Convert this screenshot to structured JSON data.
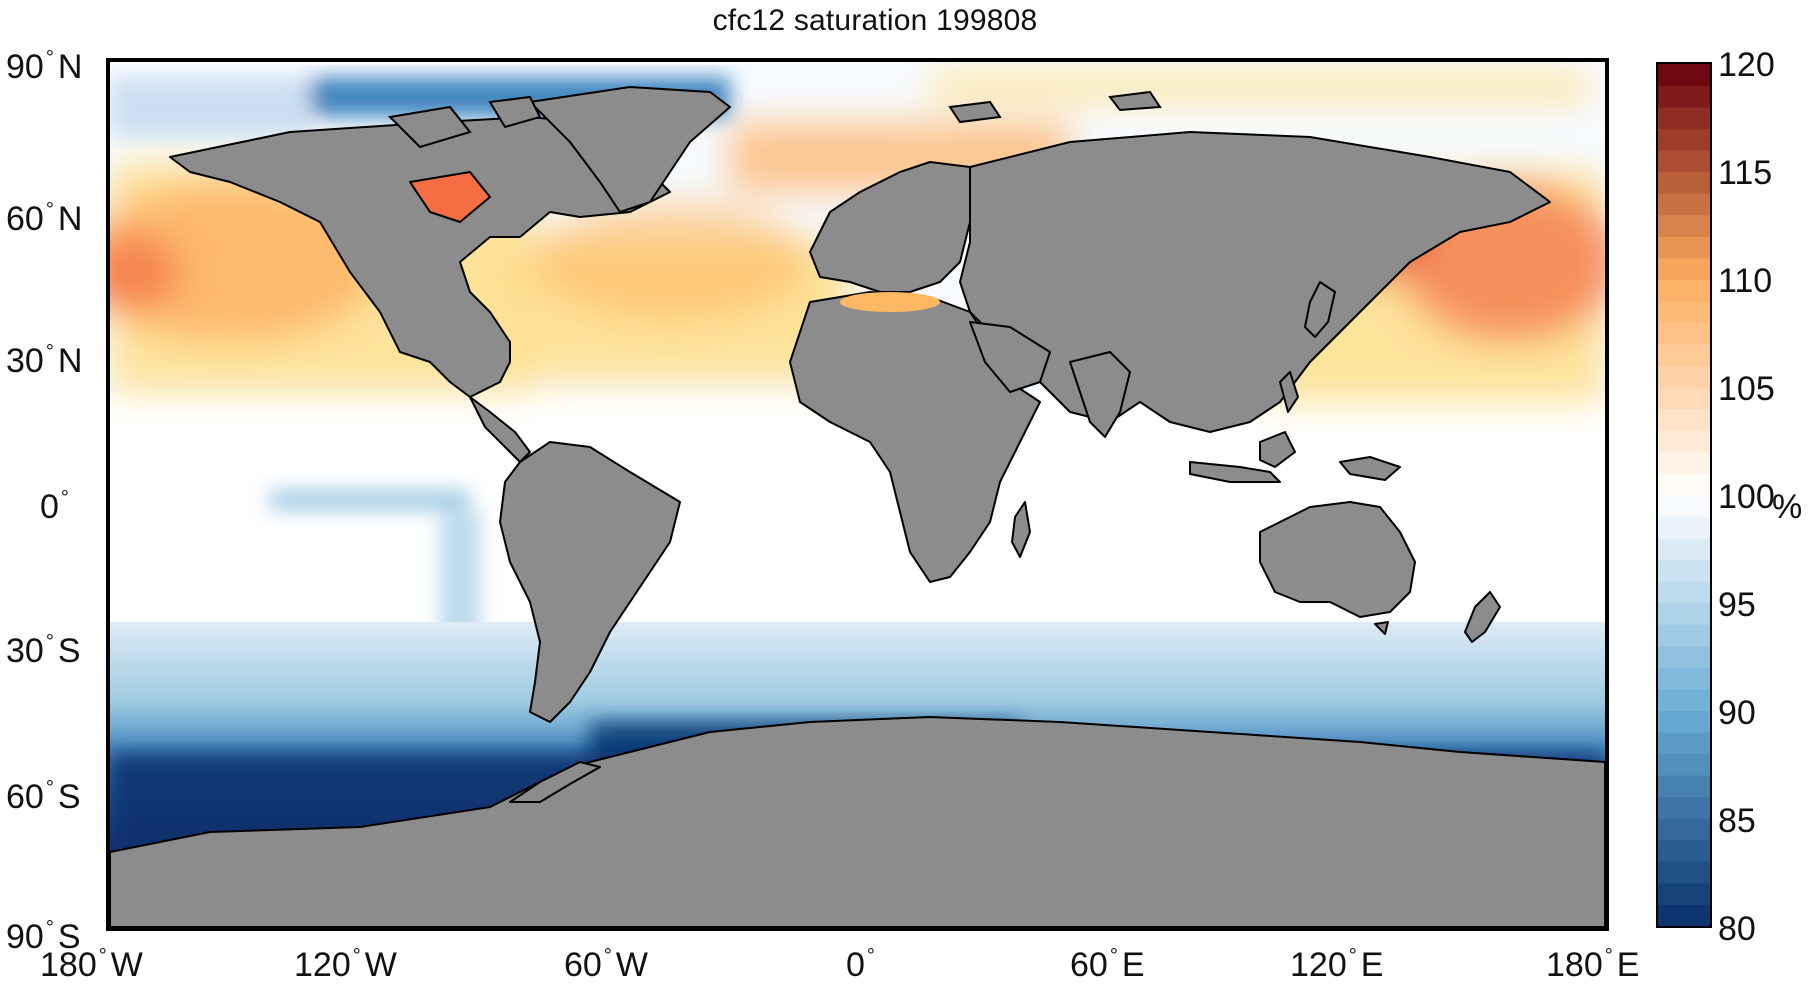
{
  "title": "cfc12 saturation 199808",
  "map": {
    "projection": "equirectangular",
    "land_color": "#8c8c8c",
    "coast_color": "#000000",
    "variable": "cfc12 saturation",
    "lat_labels": [
      {
        "deg": "90",
        "hemi": "N"
      },
      {
        "deg": "60",
        "hemi": "N"
      },
      {
        "deg": "30",
        "hemi": "N"
      },
      {
        "deg": "0",
        "hemi": ""
      },
      {
        "deg": "30",
        "hemi": "S"
      },
      {
        "deg": "60",
        "hemi": "S"
      },
      {
        "deg": "90",
        "hemi": "S"
      }
    ],
    "lon_labels": [
      {
        "deg": "180",
        "hemi": "W"
      },
      {
        "deg": "120",
        "hemi": "W"
      },
      {
        "deg": "60",
        "hemi": "W"
      },
      {
        "deg": "0",
        "hemi": ""
      },
      {
        "deg": "60",
        "hemi": "E"
      },
      {
        "deg": "120",
        "hemi": "E"
      },
      {
        "deg": "180",
        "hemi": "E"
      }
    ]
  },
  "colorbar": {
    "min": 80,
    "max": 120,
    "ticks": [
      "120",
      "115",
      "110",
      "105",
      "100",
      "95",
      "90",
      "85",
      "80"
    ],
    "unit": "%",
    "colors": {
      "low": "#08306b",
      "mid_low": "#6baed6",
      "neutral": "#ffffff",
      "mid_high": "#fdae61",
      "high": "#67000d"
    }
  }
}
